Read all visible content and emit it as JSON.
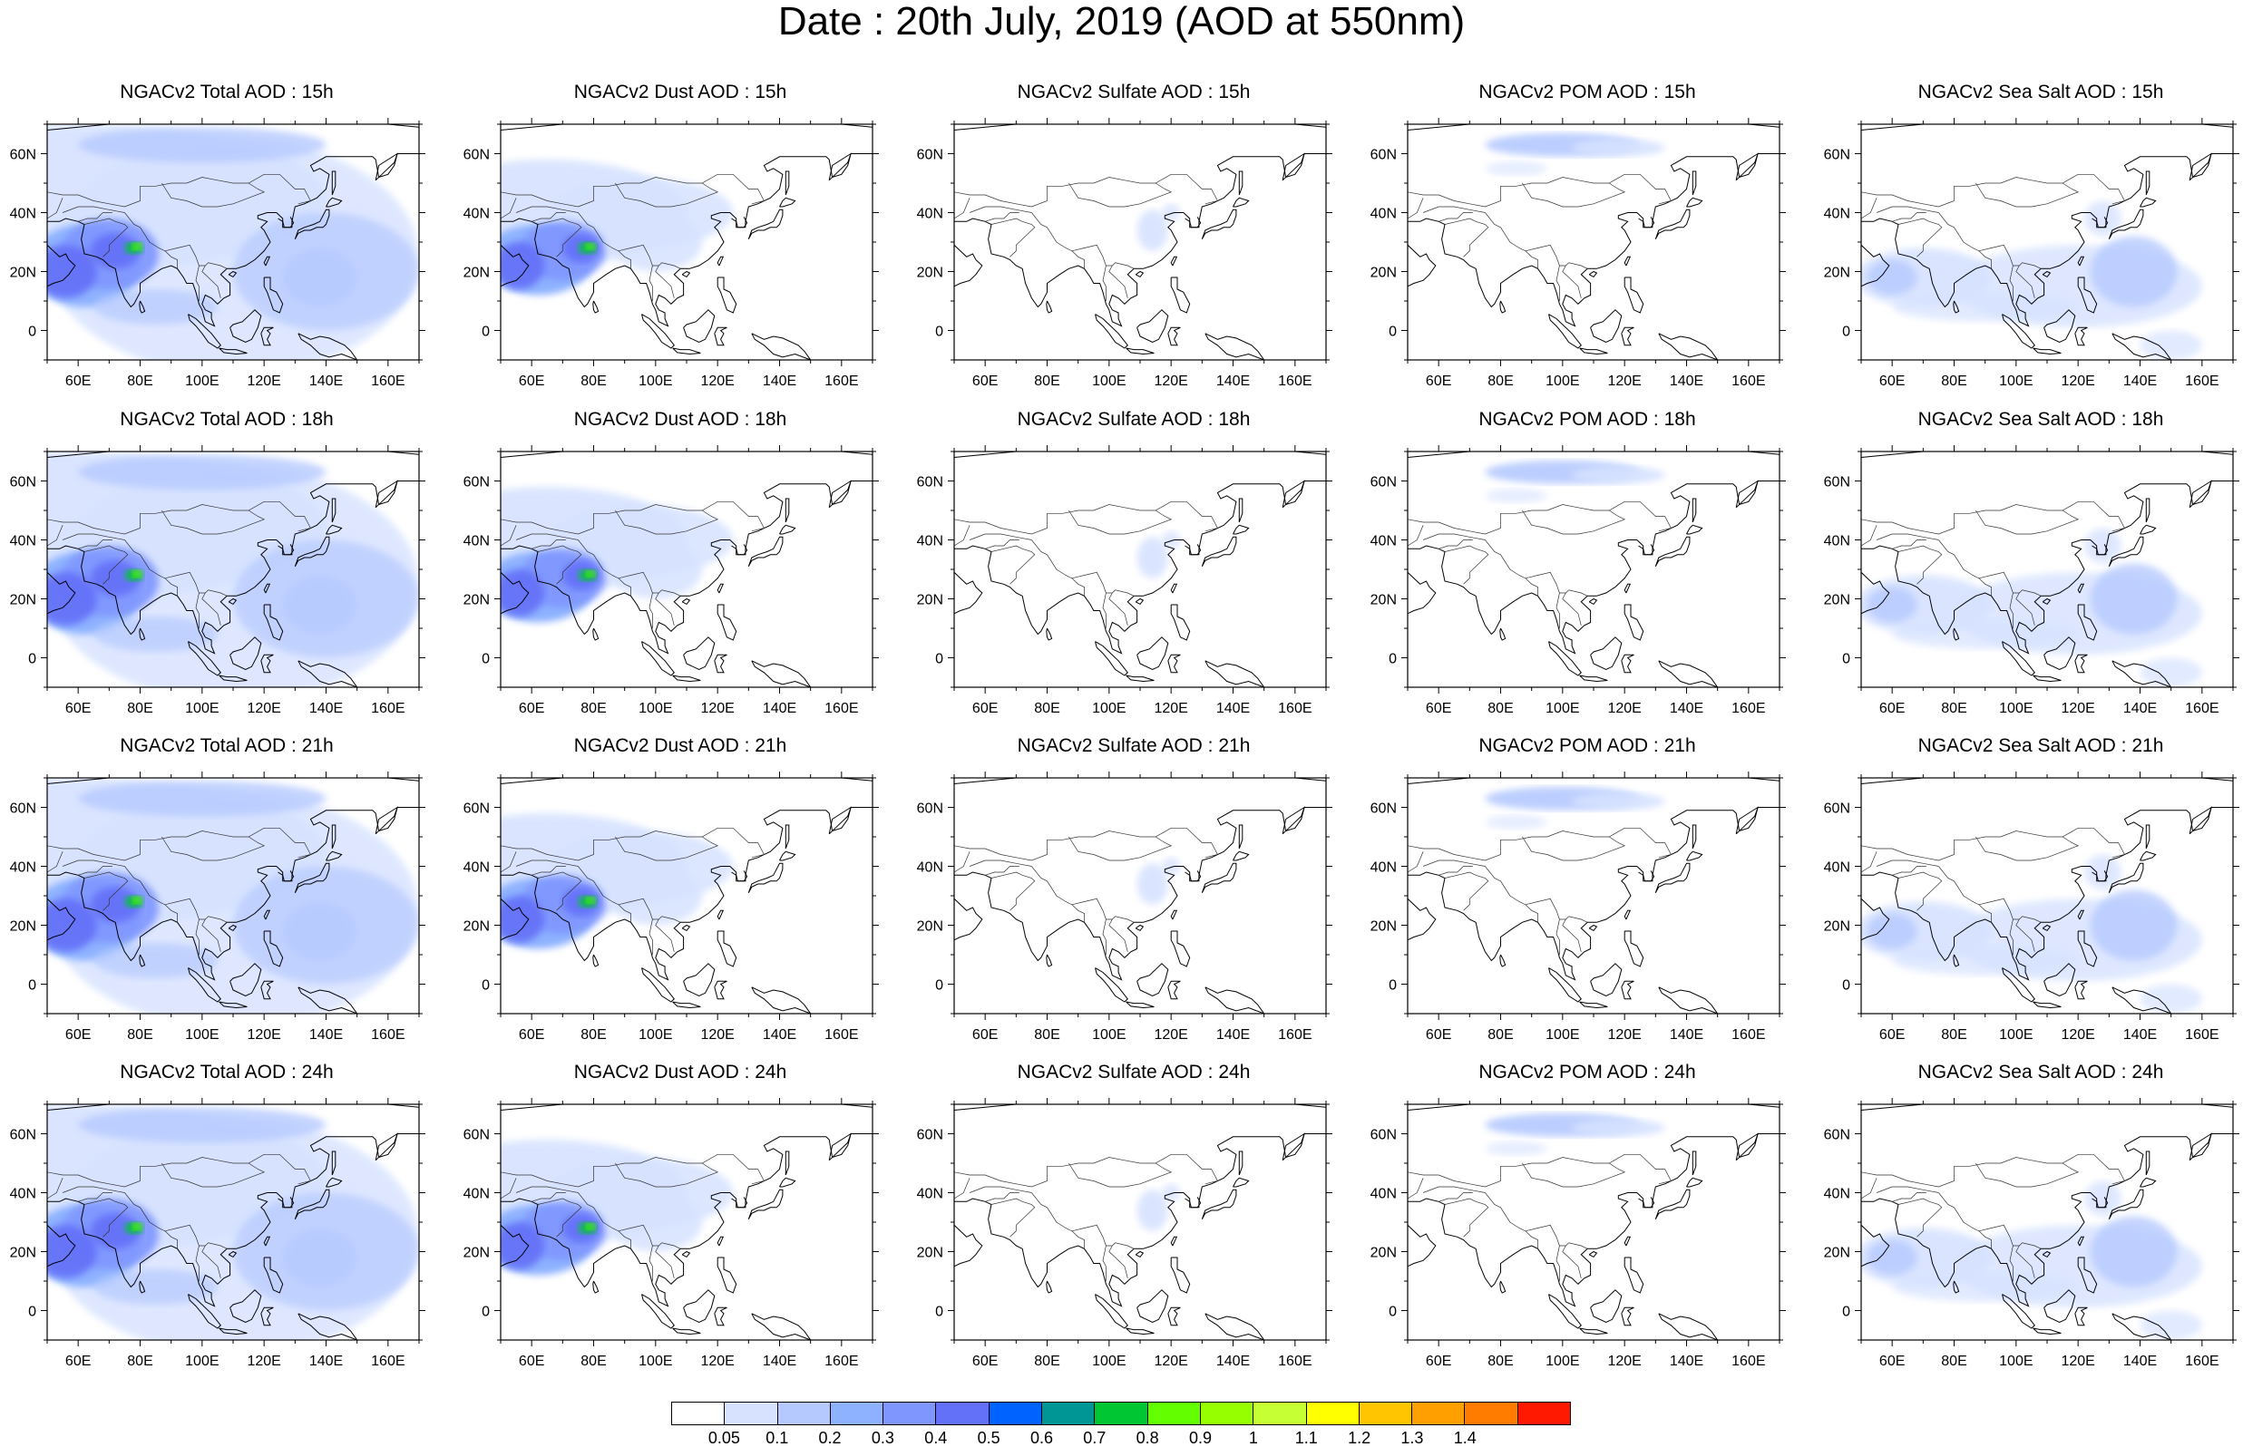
{
  "title": "Date : 20th July, 2019 (AOD at 550nm)",
  "axes": {
    "x_ticks": [
      "60E",
      "80E",
      "100E",
      "120E",
      "140E",
      "160E"
    ],
    "x_tick_values": [
      60,
      80,
      100,
      120,
      140,
      160
    ],
    "y_ticks": [
      "60N",
      "40N",
      "20N",
      "0"
    ],
    "y_tick_values": [
      60,
      40,
      20,
      0
    ],
    "lon_range": [
      50,
      170
    ],
    "lat_range": [
      -10,
      70
    ]
  },
  "rows": [
    {
      "panels": [
        {
          "title": "NGACv2 Total AOD : 15h",
          "species": "total"
        },
        {
          "title": "NGACv2 Dust AOD : 15h",
          "species": "dust"
        },
        {
          "title": "NGACv2 Sulfate AOD : 15h",
          "species": "sulfate"
        },
        {
          "title": "NGACv2 POM AOD : 15h",
          "species": "pom"
        },
        {
          "title": "NGACv2 Sea Salt AOD : 15h",
          "species": "seasalt"
        }
      ]
    },
    {
      "panels": [
        {
          "title": "NGACv2 Total AOD : 18h",
          "species": "total"
        },
        {
          "title": "NGACv2 Dust AOD : 18h",
          "species": "dust"
        },
        {
          "title": "NGACv2 Sulfate AOD : 18h",
          "species": "sulfate"
        },
        {
          "title": "NGACv2 POM AOD : 18h",
          "species": "pom"
        },
        {
          "title": "NGACv2 Sea Salt AOD : 18h",
          "species": "seasalt"
        }
      ]
    },
    {
      "panels": [
        {
          "title": "NGACv2 Total AOD : 21h",
          "species": "total"
        },
        {
          "title": "NGACv2 Dust AOD : 21h",
          "species": "dust"
        },
        {
          "title": "NGACv2 Sulfate AOD : 21h",
          "species": "sulfate"
        },
        {
          "title": "NGACv2 POM AOD : 21h",
          "species": "pom"
        },
        {
          "title": "NGACv2 Sea Salt AOD : 21h",
          "species": "seasalt"
        }
      ]
    },
    {
      "panels": [
        {
          "title": "NGACv2 Total AOD : 24h",
          "species": "total"
        },
        {
          "title": "NGACv2 Dust AOD : 24h",
          "species": "dust"
        },
        {
          "title": "NGACv2 Sulfate AOD : 24h",
          "species": "sulfate"
        },
        {
          "title": "NGACv2 POM AOD : 24h",
          "species": "pom"
        },
        {
          "title": "NGACv2 Sea Salt  AOD : 24h",
          "species": "seasalt"
        }
      ]
    }
  ],
  "colorbar": {
    "labels": [
      "0.05",
      "0.1",
      "0.2",
      "0.3",
      "0.4",
      "0.5",
      "0.6",
      "0.7",
      "0.8",
      "0.9",
      "1",
      "1.1",
      "1.2",
      "1.3",
      "1.4"
    ],
    "colors": [
      "#ffffff",
      "#d6e2ff",
      "#b5c9ff",
      "#8eb2ff",
      "#7f96ff",
      "#6370f8",
      "#0063ff",
      "#009696",
      "#00c633",
      "#63ff00",
      "#96ff00",
      "#c6ff33",
      "#ffff00",
      "#ffc600",
      "#ffa000",
      "#ff7c00",
      "#ff1900"
    ]
  }
}
